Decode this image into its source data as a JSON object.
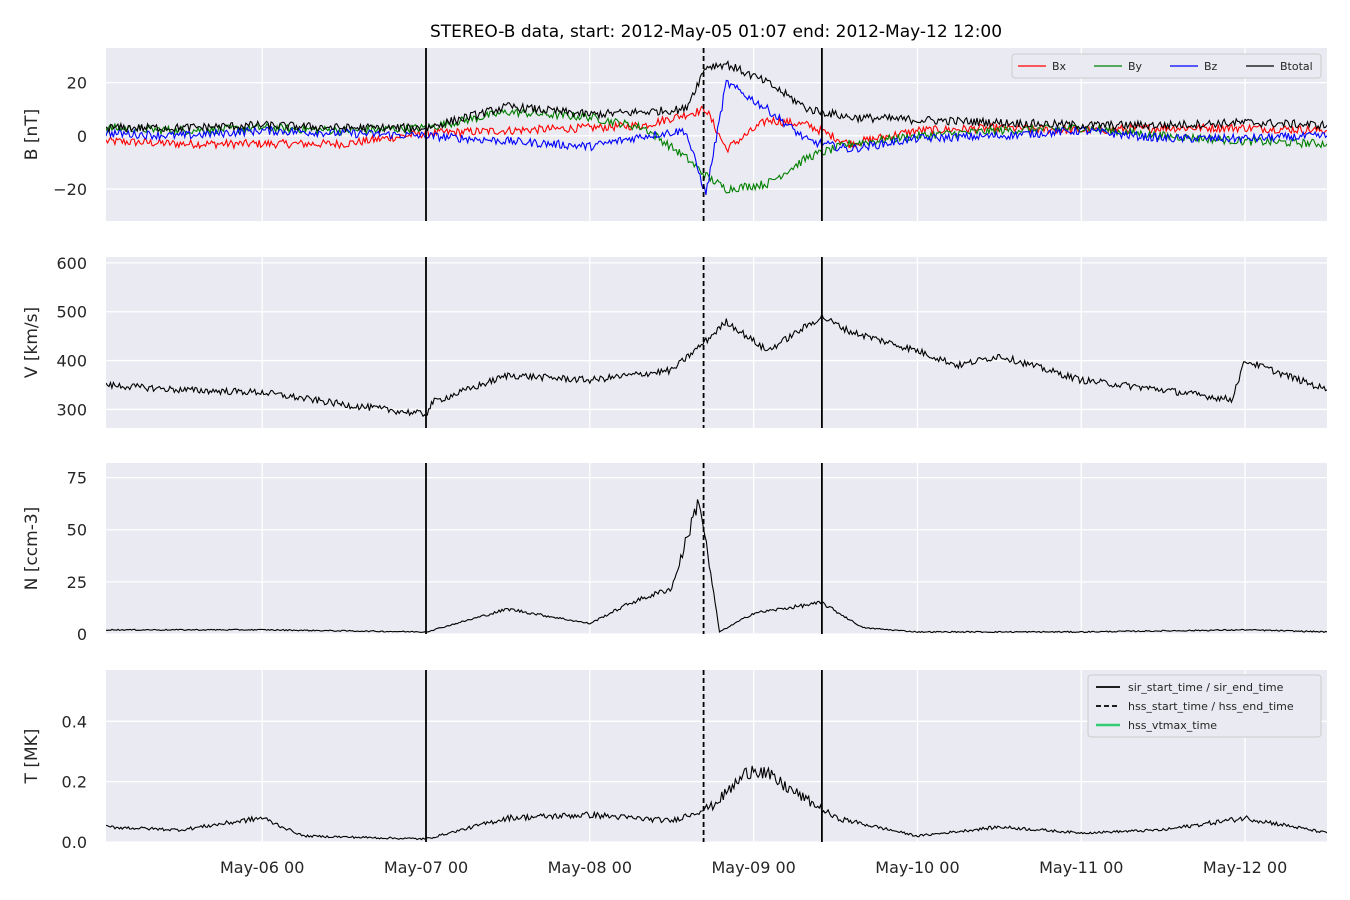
{
  "chart_data": {
    "type": "line",
    "title": "STEREO-B data, start: 2012-May-05 01:07  end: 2012-May-12 12:00",
    "x_range": [
      "2012-05-05T01:07",
      "2012-05-12T12:00"
    ],
    "x_ticks": [
      {
        "t": "2012-05-06T00:00",
        "label": "May-06 00"
      },
      {
        "t": "2012-05-07T00:00",
        "label": "May-07 00"
      },
      {
        "t": "2012-05-08T00:00",
        "label": "May-08 00"
      },
      {
        "t": "2012-05-09T00:00",
        "label": "May-09 00"
      },
      {
        "t": "2012-05-10T00:00",
        "label": "May-10 00"
      },
      {
        "t": "2012-05-11T00:00",
        "label": "May-11 00"
      },
      {
        "t": "2012-05-12T00:00",
        "label": "May-12 00"
      }
    ],
    "event_markers": [
      {
        "name": "sir_start_time / sir_end_time",
        "style": "solid",
        "times": [
          "2012-05-07T00:00",
          "2012-05-09T10:00"
        ]
      },
      {
        "name": "hss_start_time / hss_end_time",
        "style": "dashed",
        "times": [
          "2012-05-08T16:40"
        ]
      },
      {
        "name": "hss_vtmax_time",
        "style": "green",
        "times": []
      }
    ],
    "grid": true,
    "panels": [
      {
        "ylabel": "B [nT]",
        "ylim": [
          -32,
          33
        ],
        "yticks": [
          {
            "v": 20,
            "label": "20"
          },
          {
            "v": 0,
            "label": "0"
          },
          {
            "v": -20,
            "label": "−20"
          }
        ],
        "legend": "top-right",
        "series": [
          {
            "name": "Bx",
            "color": "#ff0000",
            "times": [
              "2012-05-05T01:07",
              "2012-05-05T12:00",
              "2012-05-06T00:00",
              "2012-05-06T12:00",
              "2012-05-07T00:00",
              "2012-05-07T12:00",
              "2012-05-08T00:00",
              "2012-05-08T08:00",
              "2012-05-08T14:00",
              "2012-05-08T17:00",
              "2012-05-08T20:00",
              "2012-05-09T02:00",
              "2012-05-09T08:00",
              "2012-05-09T14:00",
              "2012-05-10T00:00",
              "2012-05-10T12:00",
              "2012-05-11T00:00",
              "2012-05-11T12:00",
              "2012-05-12T00:00",
              "2012-05-12T12:00"
            ],
            "values": [
              -2,
              -3,
              -3,
              -3,
              1,
              2,
              3,
              4,
              8,
              10,
              -5,
              6,
              4,
              -3,
              2,
              3,
              2,
              3,
              3,
              2
            ]
          },
          {
            "name": "By",
            "color": "#008000",
            "times": [
              "2012-05-05T01:07",
              "2012-05-05T12:00",
              "2012-05-06T00:00",
              "2012-05-06T12:00",
              "2012-05-07T00:00",
              "2012-05-07T12:00",
              "2012-05-08T00:00",
              "2012-05-08T08:00",
              "2012-05-08T14:00",
              "2012-05-08T17:00",
              "2012-05-08T20:00",
              "2012-05-09T02:00",
              "2012-05-09T08:00",
              "2012-05-09T14:00",
              "2012-05-10T00:00",
              "2012-05-10T12:00",
              "2012-05-11T00:00",
              "2012-05-11T12:00",
              "2012-05-12T00:00",
              "2012-05-12T12:00"
            ],
            "values": [
              3,
              2,
              3,
              2,
              3,
              9,
              7,
              3,
              -8,
              -15,
              -20,
              -18,
              -8,
              -3,
              0,
              2,
              3,
              0,
              -2,
              -3
            ]
          },
          {
            "name": "Bz",
            "color": "#0000ff",
            "times": [
              "2012-05-05T01:07",
              "2012-05-05T12:00",
              "2012-05-06T00:00",
              "2012-05-06T12:00",
              "2012-05-07T00:00",
              "2012-05-07T12:00",
              "2012-05-08T00:00",
              "2012-05-08T08:00",
              "2012-05-08T14:00",
              "2012-05-08T17:00",
              "2012-05-08T20:00",
              "2012-05-09T02:00",
              "2012-05-09T08:00",
              "2012-05-09T14:00",
              "2012-05-10T00:00",
              "2012-05-10T12:00",
              "2012-05-11T00:00",
              "2012-05-11T12:00",
              "2012-05-12T00:00",
              "2012-05-12T12:00"
            ],
            "values": [
              1,
              0,
              2,
              1,
              0,
              -2,
              -4,
              0,
              2,
              -22,
              20,
              10,
              -2,
              -5,
              -1,
              0,
              2,
              -1,
              -1,
              0
            ]
          },
          {
            "name": "Btotal",
            "color": "#000000",
            "times": [
              "2012-05-05T01:07",
              "2012-05-05T12:00",
              "2012-05-06T00:00",
              "2012-05-06T12:00",
              "2012-05-07T00:00",
              "2012-05-07T12:00",
              "2012-05-08T00:00",
              "2012-05-08T08:00",
              "2012-05-08T14:00",
              "2012-05-08T17:00",
              "2012-05-08T20:00",
              "2012-05-09T02:00",
              "2012-05-09T08:00",
              "2012-05-09T14:00",
              "2012-05-10T00:00",
              "2012-05-10T12:00",
              "2012-05-11T00:00",
              "2012-05-11T12:00",
              "2012-05-12T00:00",
              "2012-05-12T12:00"
            ],
            "values": [
              3,
              3,
              4,
              3,
              3,
              11,
              8,
              9,
              10,
              26,
              27,
              20,
              10,
              7,
              6,
              5,
              4,
              4,
              5,
              4
            ]
          }
        ]
      },
      {
        "ylabel": "V [km/s]",
        "ylim": [
          262,
          612
        ],
        "yticks": [
          {
            "v": 600,
            "label": "600"
          },
          {
            "v": 500,
            "label": "500"
          },
          {
            "v": 400,
            "label": "400"
          },
          {
            "v": 300,
            "label": "300"
          }
        ],
        "series": [
          {
            "name": "",
            "color": "#000000",
            "times": [
              "2012-05-05T01:07",
              "2012-05-05T12:00",
              "2012-05-06T00:00",
              "2012-05-06T12:00",
              "2012-05-07T00:00",
              "2012-05-07T01:00",
              "2012-05-07T12:00",
              "2012-05-08T00:00",
              "2012-05-08T12:00",
              "2012-05-08T17:00",
              "2012-05-08T20:00",
              "2012-05-09T02:00",
              "2012-05-09T10:00",
              "2012-05-09T14:00",
              "2012-05-10T00:00",
              "2012-05-10T06:00",
              "2012-05-10T12:00",
              "2012-05-11T00:00",
              "2012-05-11T12:00",
              "2012-05-11T22:00",
              "2012-05-12T00:00",
              "2012-05-12T12:00"
            ],
            "values": [
              350,
              340,
              335,
              310,
              290,
              315,
              370,
              360,
              380,
              440,
              480,
              420,
              490,
              460,
              420,
              390,
              410,
              360,
              340,
              320,
              400,
              340
            ]
          }
        ]
      },
      {
        "ylabel": "N [ccm-3]",
        "ylim": [
          0,
          82
        ],
        "yticks": [
          {
            "v": 75,
            "label": "75"
          },
          {
            "v": 50,
            "label": "50"
          },
          {
            "v": 25,
            "label": "25"
          },
          {
            "v": 0,
            "label": "0"
          }
        ],
        "series": [
          {
            "name": "",
            "color": "#000000",
            "times": [
              "2012-05-05T01:07",
              "2012-05-06T00:00",
              "2012-05-07T00:00",
              "2012-05-07T12:00",
              "2012-05-08T00:00",
              "2012-05-08T06:00",
              "2012-05-08T12:00",
              "2012-05-08T16:00",
              "2012-05-08T19:00",
              "2012-05-09T00:00",
              "2012-05-09T10:00",
              "2012-05-09T16:00",
              "2012-05-10T00:00",
              "2012-05-11T00:00",
              "2012-05-12T00:00",
              "2012-05-12T12:00"
            ],
            "values": [
              2,
              2,
              1,
              12,
              5,
              15,
              22,
              65,
              1,
              10,
              15,
              3,
              1,
              1,
              2,
              1
            ]
          }
        ]
      },
      {
        "ylabel": "T [MK]",
        "ylim": [
          0,
          0.57
        ],
        "yticks": [
          {
            "v": 0.4,
            "label": "0.4"
          },
          {
            "v": 0.2,
            "label": "0.2"
          },
          {
            "v": 0.0,
            "label": "0.0"
          }
        ],
        "legend": "top-right",
        "series": [
          {
            "name": "",
            "color": "#000000",
            "times": [
              "2012-05-05T01:07",
              "2012-05-05T12:00",
              "2012-05-06T00:00",
              "2012-05-06T06:00",
              "2012-05-07T00:00",
              "2012-05-07T12:00",
              "2012-05-08T00:00",
              "2012-05-08T12:00",
              "2012-05-08T18:00",
              "2012-05-09T00:00",
              "2012-05-09T12:00",
              "2012-05-10T00:00",
              "2012-05-10T12:00",
              "2012-05-11T00:00",
              "2012-05-11T12:00",
              "2012-05-12T00:00",
              "2012-05-12T12:00"
            ],
            "values": [
              0.05,
              0.04,
              0.08,
              0.02,
              0.01,
              0.08,
              0.09,
              0.07,
              0.12,
              0.25,
              0.08,
              0.02,
              0.05,
              0.03,
              0.04,
              0.08,
              0.03
            ]
          }
        ]
      }
    ]
  }
}
